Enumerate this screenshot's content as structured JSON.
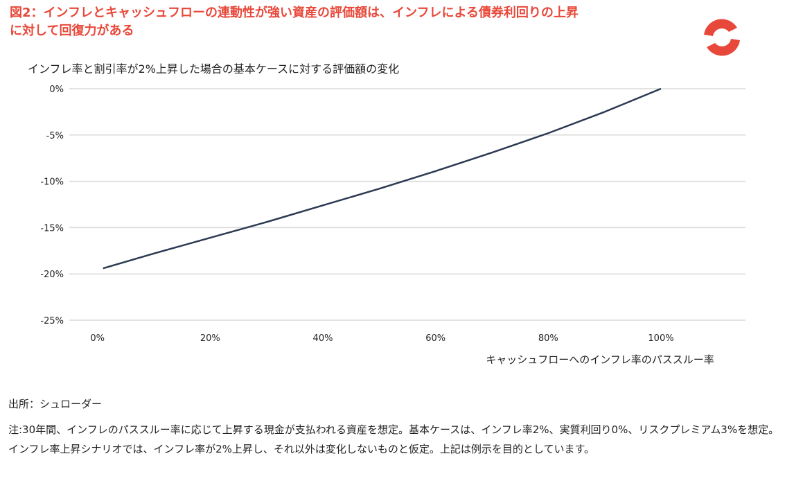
{
  "header": {
    "title_line1": "図2：インフレとキャッシュフローの連動性が強い資産の評価額は、インフレによる債券利回りの上昇",
    "title_line2": "に対して回復力がある",
    "logo_icon": "schroders-ring-logo-icon"
  },
  "footer": {
    "source": "出所：シュローダー",
    "note": "注:30年間、インフレのパススルー率に応じて上昇する現金が支払われる資産を想定。基本ケースは、インフレ率2%、実質利回り0%、リスクプレミアム3%を想定。インフレ率上昇シナリオでは、インフレ率が2%上昇し、それ以外は変化しないものと仮定。上記は例示を目的としています。"
  },
  "colors": {
    "title": "#e8483a",
    "line": "#2b3a52",
    "grid": "#d9d9d9",
    "logo": "#e8483a"
  },
  "chart_data": {
    "type": "line",
    "title": "インフレ率と割引率が2%上昇した場合の基本ケースに対する評価額の変化",
    "xlabel": "キャッシュフローへのインフレ率のパススルー率",
    "ylabel": "",
    "x_ticks": [
      "0%",
      "20%",
      "40%",
      "60%",
      "80%",
      "100%"
    ],
    "y_ticks": [
      "0%",
      "-5%",
      "-10%",
      "-15%",
      "-20%",
      "-25%"
    ],
    "xlim": [
      -5,
      115
    ],
    "ylim": [
      -25,
      0
    ],
    "grid": true,
    "legend": "none",
    "series": [
      {
        "x": [
          1,
          10,
          20,
          30,
          40,
          50,
          60,
          70,
          80,
          90,
          100
        ],
        "y": [
          -19.4,
          -17.8,
          -16.1,
          -14.4,
          -12.6,
          -10.8,
          -8.9,
          -6.9,
          -4.8,
          -2.5,
          0.0
        ]
      }
    ]
  }
}
